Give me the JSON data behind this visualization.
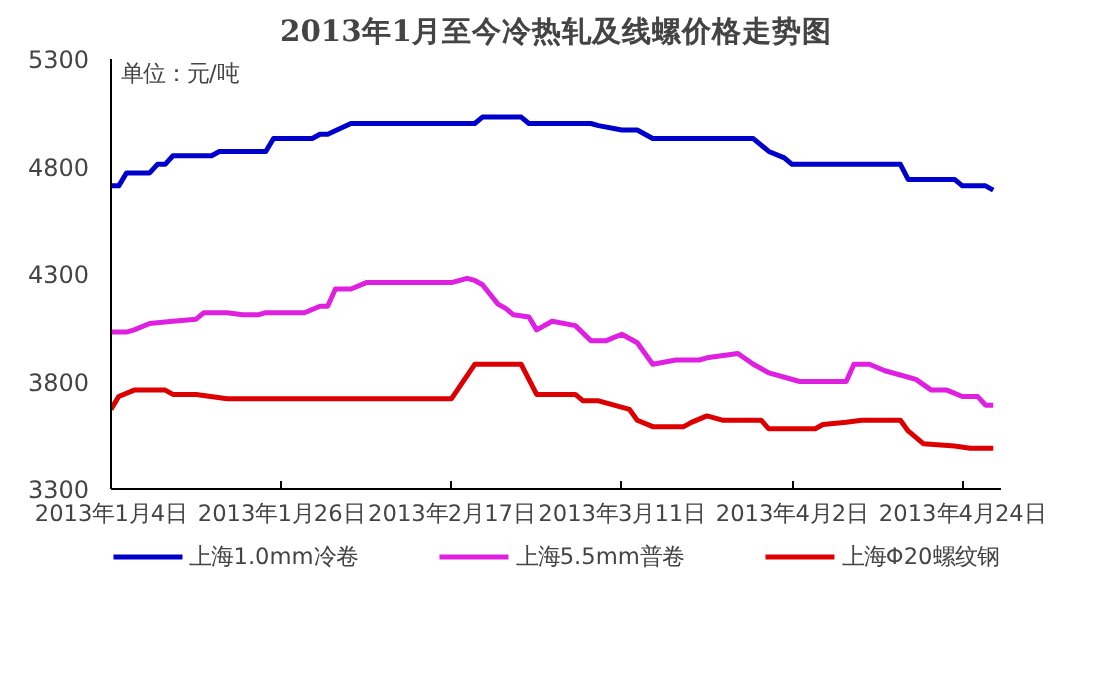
{
  "chart_data": {
    "type": "line",
    "title": "2013年1月至今冷热轧及线螺价格走势图",
    "annotations": [
      "单位：元/吨"
    ],
    "xlim": [
      "2013-01-04",
      "2013-04-29"
    ],
    "xticks": [
      {
        "value": "2013-01-04",
        "label": "2013年1月4日"
      },
      {
        "value": "2013-01-26",
        "label": "2013年1月26日"
      },
      {
        "value": "2013-02-17",
        "label": "2013年2月17日"
      },
      {
        "value": "2013-03-11",
        "label": "2013年3月11日"
      },
      {
        "value": "2013-04-02",
        "label": "2013年4月2日"
      },
      {
        "value": "2013-04-24",
        "label": "2013年4月24日"
      }
    ],
    "ylim": [
      3300,
      5300
    ],
    "yticks": [
      3300,
      3800,
      4300,
      4800,
      5300
    ],
    "grid": false,
    "legend": "bottom",
    "marker": "none",
    "line_style": "solid",
    "series": [
      {
        "name": "上海1.0mm冷卷",
        "color": "#0000cc",
        "x": [
          "2013-01-04",
          "2013-01-05",
          "2013-01-06",
          "2013-01-09",
          "2013-01-10",
          "2013-01-11",
          "2013-01-12",
          "2013-01-17",
          "2013-01-18",
          "2013-01-24",
          "2013-01-25",
          "2013-01-30",
          "2013-01-31",
          "2013-02-01",
          "2013-02-04",
          "2013-02-20",
          "2013-02-21",
          "2013-02-26",
          "2013-02-27",
          "2013-03-07",
          "2013-03-08",
          "2013-03-11",
          "2013-03-13",
          "2013-03-15",
          "2013-03-28",
          "2013-03-30",
          "2013-04-01",
          "2013-04-02",
          "2013-04-16",
          "2013-04-17",
          "2013-04-23",
          "2013-04-24",
          "2013-04-27",
          "2013-04-28"
        ],
        "values": [
          4710,
          4710,
          4770,
          4770,
          4810,
          4810,
          4850,
          4850,
          4870,
          4870,
          4930,
          4930,
          4950,
          4950,
          5000,
          5000,
          5030,
          5030,
          5000,
          5000,
          4990,
          4970,
          4970,
          4930,
          4930,
          4870,
          4840,
          4810,
          4810,
          4740,
          4740,
          4710,
          4710,
          4690
        ]
      },
      {
        "name": "上海5.5mm普卷",
        "color": "#e020e0",
        "x": [
          "2013-01-04",
          "2013-01-06",
          "2013-01-07",
          "2013-01-09",
          "2013-01-12",
          "2013-01-15",
          "2013-01-16",
          "2013-01-19",
          "2013-01-21",
          "2013-01-23",
          "2013-01-24",
          "2013-01-29",
          "2013-01-31",
          "2013-02-01",
          "2013-02-02",
          "2013-02-04",
          "2013-02-06",
          "2013-02-17",
          "2013-02-19",
          "2013-02-20",
          "2013-02-21",
          "2013-02-23",
          "2013-02-24",
          "2013-02-25",
          "2013-02-27",
          "2013-02-28",
          "2013-03-02",
          "2013-03-05",
          "2013-03-07",
          "2013-03-09",
          "2013-03-11",
          "2013-03-13",
          "2013-03-15",
          "2013-03-18",
          "2013-03-21",
          "2013-03-22",
          "2013-03-26",
          "2013-03-28",
          "2013-03-30",
          "2013-04-03",
          "2013-04-09",
          "2013-04-10",
          "2013-04-12",
          "2013-04-14",
          "2013-04-18",
          "2013-04-20",
          "2013-04-22",
          "2013-04-24",
          "2013-04-26",
          "2013-04-27",
          "2013-04-28"
        ],
        "values": [
          4030,
          4030,
          4040,
          4070,
          4080,
          4090,
          4120,
          4120,
          4110,
          4110,
          4120,
          4120,
          4150,
          4150,
          4230,
          4230,
          4260,
          4260,
          4280,
          4270,
          4250,
          4160,
          4140,
          4110,
          4100,
          4040,
          4080,
          4060,
          3990,
          3990,
          4020,
          3980,
          3880,
          3900,
          3900,
          3910,
          3930,
          3880,
          3840,
          3800,
          3800,
          3880,
          3880,
          3850,
          3810,
          3760,
          3760,
          3730,
          3730,
          3690,
          3690
        ]
      },
      {
        "name": "上海Φ20螺纹钢",
        "color": "#dd0000",
        "x": [
          "2013-01-04",
          "2013-01-05",
          "2013-01-07",
          "2013-01-11",
          "2013-01-12",
          "2013-01-15",
          "2013-01-19",
          "2013-02-17",
          "2013-02-20",
          "2013-02-26",
          "2013-02-28",
          "2013-03-05",
          "2013-03-06",
          "2013-03-08",
          "2013-03-12",
          "2013-03-13",
          "2013-03-15",
          "2013-03-19",
          "2013-03-20",
          "2013-03-22",
          "2013-03-24",
          "2013-03-29",
          "2013-03-30",
          "2013-04-05",
          "2013-04-06",
          "2013-04-09",
          "2013-04-11",
          "2013-04-16",
          "2013-04-17",
          "2013-04-19",
          "2013-04-23",
          "2013-04-25",
          "2013-04-28"
        ],
        "values": [
          3670,
          3730,
          3760,
          3760,
          3740,
          3740,
          3720,
          3720,
          3880,
          3880,
          3740,
          3740,
          3710,
          3710,
          3670,
          3620,
          3590,
          3590,
          3610,
          3640,
          3620,
          3620,
          3580,
          3580,
          3600,
          3610,
          3620,
          3620,
          3570,
          3510,
          3500,
          3490,
          3490
        ]
      }
    ]
  }
}
